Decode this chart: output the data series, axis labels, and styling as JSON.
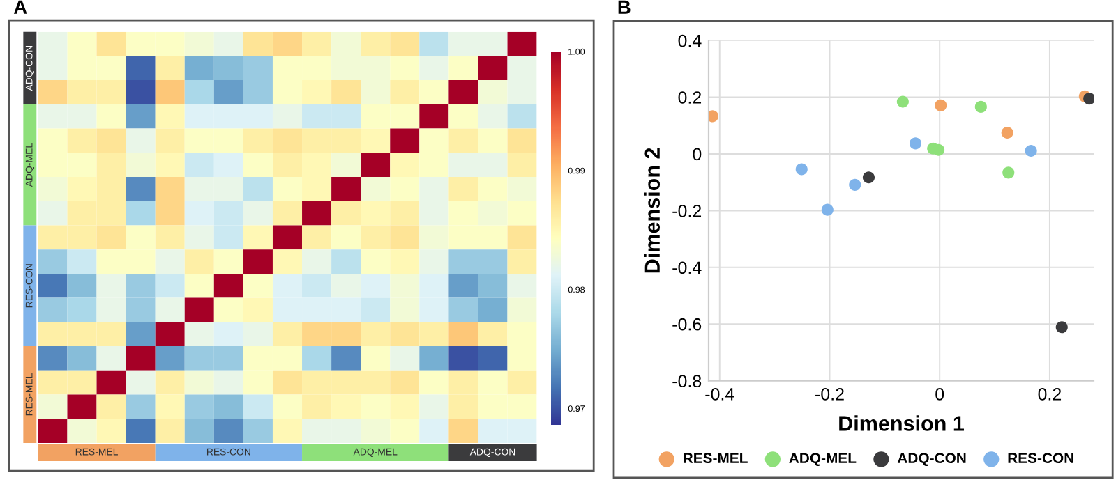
{
  "chart_data": [
    {
      "type": "heatmap",
      "title": "A",
      "categories": [
        null,
        null,
        null,
        null,
        null,
        null,
        null,
        null,
        null,
        null,
        null,
        null,
        null,
        null,
        null,
        null,
        null
      ],
      "y_categories": [
        null,
        null,
        null,
        null,
        null,
        null,
        null,
        null,
        null,
        null,
        null,
        null,
        null,
        null,
        null,
        null,
        null
      ],
      "cells": [
        [
          0.982,
          0.984,
          0.987,
          0.984,
          0.984,
          0.983,
          0.982,
          0.987,
          0.988,
          0.986,
          0.983,
          0.986,
          0.987,
          0.979,
          0.982,
          0.982,
          1.0
        ],
        [
          0.982,
          0.984,
          0.984,
          0.971,
          0.986,
          0.975,
          0.976,
          0.977,
          0.984,
          0.984,
          0.983,
          0.983,
          0.984,
          0.982,
          0.984,
          1.0,
          0.982
        ],
        [
          0.988,
          0.986,
          0.986,
          0.97,
          0.989,
          0.978,
          0.974,
          0.977,
          0.984,
          0.985,
          0.987,
          0.983,
          0.986,
          0.984,
          1.0,
          0.983,
          0.982
        ],
        [
          0.982,
          0.982,
          0.984,
          0.974,
          0.985,
          0.981,
          0.981,
          0.981,
          0.982,
          0.98,
          0.98,
          0.984,
          0.984,
          1.0,
          0.984,
          0.982,
          0.979
        ],
        [
          0.984,
          0.986,
          0.987,
          0.982,
          0.986,
          0.984,
          0.984,
          0.986,
          0.987,
          0.986,
          0.986,
          0.985,
          1.0,
          0.984,
          0.986,
          0.984,
          0.987
        ],
        [
          0.984,
          0.984,
          0.986,
          0.983,
          0.985,
          0.98,
          0.981,
          0.984,
          0.986,
          0.985,
          0.983,
          1.0,
          0.985,
          0.984,
          0.982,
          0.982,
          0.986
        ],
        [
          0.983,
          0.985,
          0.986,
          0.973,
          0.988,
          0.982,
          0.982,
          0.979,
          0.984,
          0.985,
          1.0,
          0.983,
          0.984,
          0.982,
          0.986,
          0.984,
          0.983
        ],
        [
          0.982,
          0.986,
          0.986,
          0.978,
          0.988,
          0.981,
          0.98,
          0.982,
          0.986,
          1.0,
          0.986,
          0.985,
          0.986,
          0.982,
          0.984,
          0.983,
          0.984
        ],
        [
          0.986,
          0.986,
          0.987,
          0.984,
          0.986,
          0.982,
          0.98,
          0.985,
          1.0,
          0.986,
          0.984,
          0.986,
          0.987,
          0.983,
          0.984,
          0.984,
          0.987
        ],
        [
          0.977,
          0.98,
          0.984,
          0.984,
          0.982,
          0.986,
          0.984,
          1.0,
          0.985,
          0.982,
          0.979,
          0.984,
          0.985,
          0.982,
          0.977,
          0.977,
          0.986
        ],
        [
          0.972,
          0.976,
          0.982,
          0.977,
          0.98,
          0.984,
          1.0,
          0.984,
          0.981,
          0.98,
          0.982,
          0.981,
          0.983,
          0.981,
          0.974,
          0.976,
          0.982
        ],
        [
          0.977,
          0.978,
          0.982,
          0.977,
          0.982,
          1.0,
          0.984,
          0.985,
          0.981,
          0.981,
          0.981,
          0.98,
          0.983,
          0.981,
          0.977,
          0.975,
          0.983
        ],
        [
          0.986,
          0.986,
          0.986,
          0.974,
          1.0,
          0.982,
          0.981,
          0.982,
          0.986,
          0.988,
          0.988,
          0.986,
          0.987,
          0.986,
          0.989,
          0.986,
          0.984
        ],
        [
          0.973,
          0.976,
          0.982,
          1.0,
          0.974,
          0.977,
          0.977,
          0.984,
          0.984,
          0.978,
          0.973,
          0.984,
          0.982,
          0.975,
          0.97,
          0.971,
          0.984
        ],
        [
          0.986,
          0.986,
          1.0,
          0.982,
          0.986,
          0.983,
          0.982,
          0.984,
          0.987,
          0.986,
          0.986,
          0.986,
          0.987,
          0.984,
          0.986,
          0.984,
          0.986
        ],
        [
          0.983,
          1.0,
          0.986,
          0.977,
          0.985,
          0.977,
          0.976,
          0.98,
          0.984,
          0.986,
          0.985,
          0.984,
          0.985,
          0.982,
          0.986,
          0.984,
          0.984
        ],
        [
          1.0,
          0.983,
          0.985,
          0.972,
          0.986,
          0.976,
          0.973,
          0.977,
          0.985,
          0.982,
          0.982,
          0.983,
          0.984,
          0.981,
          0.988,
          0.981,
          0.981
        ]
      ],
      "clim": [
        0.9686,
        1.0
      ],
      "cticks": [
        {
          "value": 1.0,
          "label": "1.00"
        },
        0.99,
        0.98,
        0.97
      ],
      "annotations": [
        "RES-MEL",
        "RES-CON",
        "ADQ-MEL",
        "ADQ-CON",
        "ADQ-CON",
        "ADQ-MEL",
        "RES-CON",
        "RES-MEL"
      ]
    },
    {
      "type": "scatter",
      "title": "B",
      "xlabel": "Dimension 1",
      "ylabel": "Dimension 2",
      "xlim": [
        -0.42,
        0.28
      ],
      "ylim": [
        -0.8,
        0.4
      ],
      "xticks": [
        -0.4,
        -0.2,
        0,
        0.2
      ],
      "yticks": [
        -0.8,
        -0.6,
        -0.4,
        -0.2,
        0,
        0.2,
        0.4
      ],
      "grid": true,
      "legend": "bottom",
      "marker": "circle",
      "series": [
        {
          "name": "RES-MEL",
          "color": "#f2a262",
          "x": [
            -0.413,
            0.002,
            0.123,
            0.264
          ],
          "values": [
            0.133,
            0.171,
            0.075,
            0.203
          ]
        },
        {
          "name": "ADQ-MEL",
          "color": "#8ee07a",
          "x": [
            -0.067,
            0.075,
            -0.012,
            -0.002,
            0.125
          ],
          "values": [
            0.184,
            0.166,
            0.019,
            0.014,
            -0.066
          ]
        },
        {
          "name": "ADQ-CON",
          "color": "#3b3b3d",
          "x": [
            -0.129,
            0.272,
            0.222
          ],
          "values": [
            -0.083,
            0.195,
            -0.611
          ]
        },
        {
          "name": "RES-CON",
          "color": "#7fb3ea",
          "x": [
            -0.251,
            -0.204,
            -0.154,
            -0.044,
            0.166
          ],
          "values": [
            -0.054,
            -0.197,
            -0.109,
            0.037,
            0.011
          ]
        }
      ]
    }
  ]
}
